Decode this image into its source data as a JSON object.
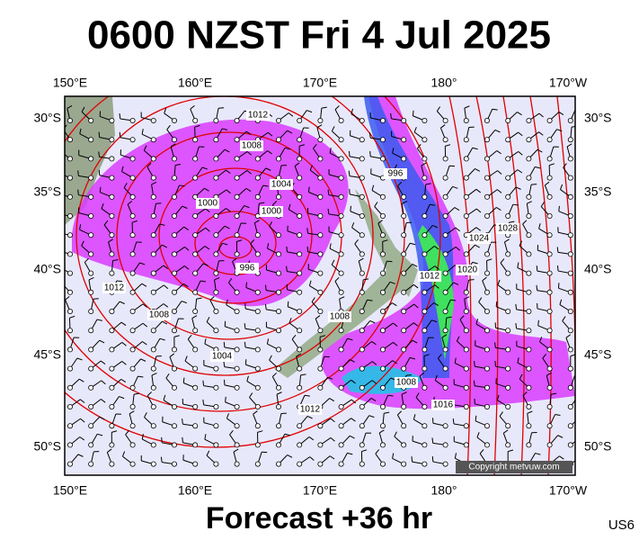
{
  "header": {
    "title": "0600 NZST Fri 4 Jul 2025"
  },
  "map": {
    "lon_labels": [
      "150°E",
      "160°E",
      "170°E",
      "180°",
      "170°W"
    ],
    "lat_labels": [
      "30°S",
      "35°S",
      "40°S",
      "45°S",
      "50°S"
    ],
    "isobar_labels": [
      "1012",
      "1008",
      "1004",
      "1000",
      "1000",
      "996",
      "1012",
      "1008",
      "1004",
      "1008",
      "996",
      "1024",
      "1028",
      "1012",
      "1020",
      "1008",
      "1016",
      "1012"
    ],
    "copyright": "Copyright metvuw.com"
  },
  "footer": {
    "forecast": "Forecast +36 hr",
    "code": "US6"
  }
}
